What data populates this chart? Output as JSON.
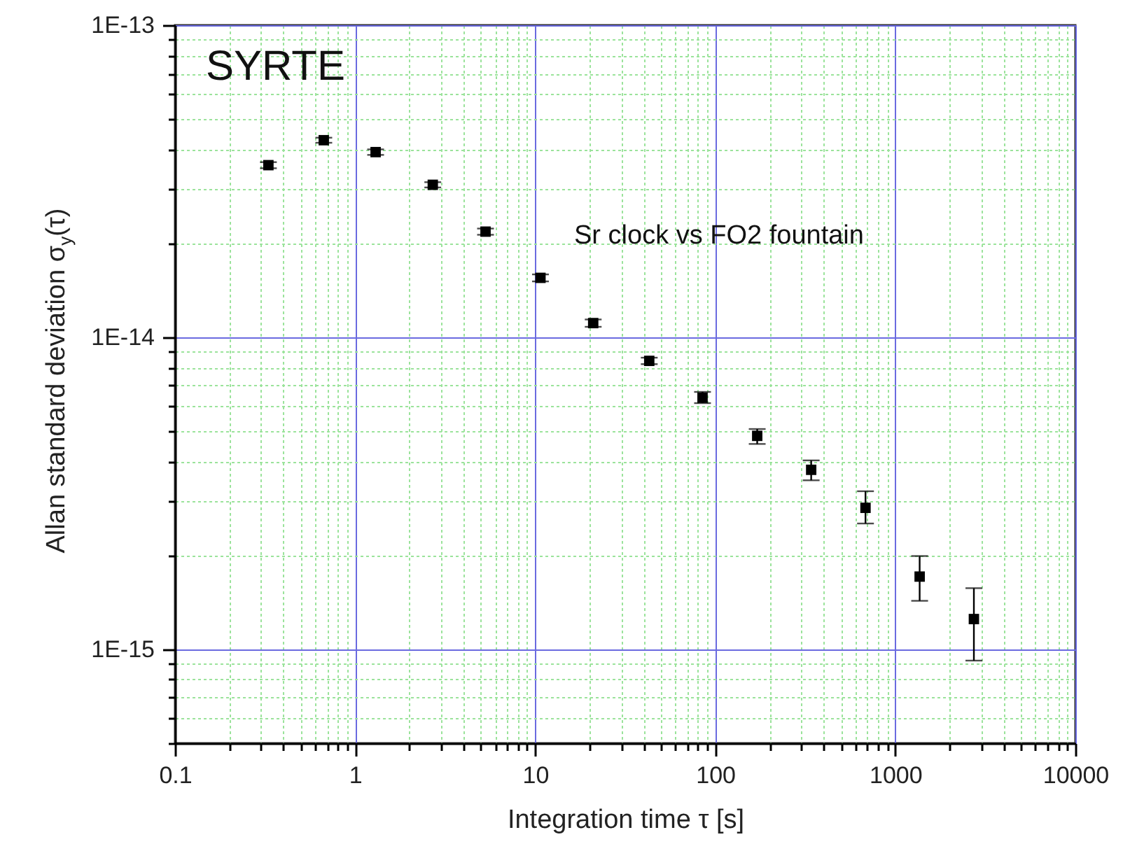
{
  "chart_data": {
    "type": "scatter",
    "xlabel": "Integration time τ [s]",
    "ylabel": "Allan standard deviation σ$_{y}$(τ)",
    "annotations": [
      "SYRTE",
      "Sr clock vs FO2 fountain"
    ],
    "log": "xy",
    "grid": true,
    "marker": "square",
    "x": [
      0.33,
      0.67,
      1.3,
      2.7,
      5.3,
      10.7,
      21,
      43,
      85,
      171,
      341,
      683,
      1365,
      2731
    ],
    "series": [
      {
        "color": "#000000",
        "values": [
          3.56e-14,
          4.28e-14,
          3.92e-14,
          3.08e-14,
          2.18e-14,
          1.55e-14,
          1.11e-14,
          8.4e-15,
          6.4e-15,
          4.83e-15,
          3.76e-15,
          2.84e-15,
          1.71e-15,
          1.25e-15
        ],
        "errors": [
          [
            3.48e-14,
            3.64e-14
          ],
          [
            4.2e-14,
            4.36e-14
          ],
          [
            3.84e-14,
            4e-14
          ],
          [
            3.02e-14,
            3.14e-14
          ],
          [
            2.13e-14,
            2.23e-14
          ],
          [
            1.51e-14,
            1.59e-14
          ],
          [
            1.08e-14,
            1.14e-14
          ],
          [
            8.2e-15,
            8.6e-15
          ],
          [
            6.15e-15,
            6.68e-15
          ],
          [
            4.55e-15,
            5.08e-15
          ],
          [
            3.48e-15,
            4.03e-15
          ],
          [
            2.53e-15,
            3.21e-15
          ],
          [
            1.43e-15,
            1.99e-15
          ],
          [
            9.2e-16,
            1.57e-15
          ]
        ]
      }
    ],
    "xlim": [
      0.1,
      10000
    ],
    "xticks": [
      0.1,
      {
        "value": 0.2,
        "label": null
      },
      {
        "value": 0.3,
        "label": null
      },
      {
        "value": 0.4,
        "label": null
      },
      {
        "value": 0.5,
        "label": null
      },
      {
        "value": 0.6,
        "label": null
      },
      {
        "value": 0.7,
        "label": null
      },
      {
        "value": 0.8,
        "label": null
      },
      {
        "value": 0.9,
        "label": null
      },
      1,
      {
        "value": 2,
        "label": null
      },
      {
        "value": 3,
        "label": null
      },
      {
        "value": 4,
        "label": null
      },
      {
        "value": 5,
        "label": null
      },
      {
        "value": 6,
        "label": null
      },
      {
        "value": 7,
        "label": null
      },
      {
        "value": 8,
        "label": null
      },
      {
        "value": 9,
        "label": null
      },
      10,
      {
        "value": 20,
        "label": null
      },
      {
        "value": 30,
        "label": null
      },
      {
        "value": 40,
        "label": null
      },
      {
        "value": 50,
        "label": null
      },
      {
        "value": 60,
        "label": null
      },
      {
        "value": 70,
        "label": null
      },
      {
        "value": 80,
        "label": null
      },
      {
        "value": 90,
        "label": null
      },
      100,
      {
        "value": 200,
        "label": null
      },
      {
        "value": 300,
        "label": null
      },
      {
        "value": 400,
        "label": null
      },
      {
        "value": 500,
        "label": null
      },
      {
        "value": 600,
        "label": null
      },
      {
        "value": 700,
        "label": null
      },
      {
        "value": 800,
        "label": null
      },
      {
        "value": 900,
        "label": null
      },
      1000,
      {
        "value": 2000,
        "label": null
      },
      {
        "value": 3000,
        "label": null
      },
      {
        "value": 4000,
        "label": null
      },
      {
        "value": 5000,
        "label": null
      },
      {
        "value": 6000,
        "label": null
      },
      {
        "value": 7000,
        "label": null
      },
      {
        "value": 8000,
        "label": null
      },
      {
        "value": 9000,
        "label": null
      },
      10000
    ],
    "ylim": [
      5e-16,
      1e-13
    ],
    "yticks": [
      {
        "value": 5e-16,
        "label": null
      },
      {
        "value": 6e-16,
        "label": null
      },
      {
        "value": 7e-16,
        "label": null
      },
      {
        "value": 8e-16,
        "label": null
      },
      {
        "value": 9e-16,
        "label": null
      },
      {
        "value": 1e-15,
        "label": "1E-15"
      },
      {
        "value": 2e-15,
        "label": null
      },
      {
        "value": 3e-15,
        "label": null
      },
      {
        "value": 4e-15,
        "label": null
      },
      {
        "value": 5e-15,
        "label": null
      },
      {
        "value": 6e-15,
        "label": null
      },
      {
        "value": 7e-15,
        "label": null
      },
      {
        "value": 8e-15,
        "label": null
      },
      {
        "value": 9e-15,
        "label": null
      },
      {
        "value": 1e-14,
        "label": "1E-14"
      },
      {
        "value": 2e-14,
        "label": null
      },
      {
        "value": 3e-14,
        "label": null
      },
      {
        "value": 4e-14,
        "label": null
      },
      {
        "value": 5e-14,
        "label": null
      },
      {
        "value": 6e-14,
        "label": null
      },
      {
        "value": 7e-14,
        "label": null
      },
      {
        "value": 8e-14,
        "label": null
      },
      {
        "value": 9e-14,
        "label": null
      },
      {
        "value": 1e-13,
        "label": "1E-13"
      }
    ]
  }
}
